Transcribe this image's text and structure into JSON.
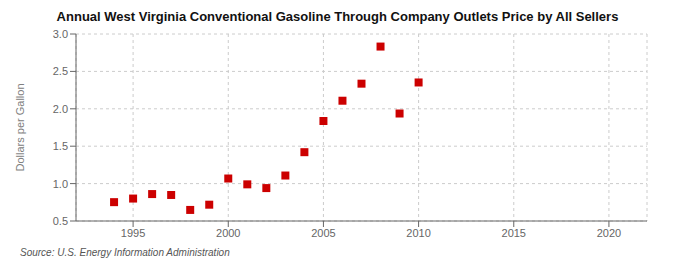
{
  "chart_data": {
    "type": "scatter",
    "title": "Annual West Virginia Conventional Gasoline Through Company Outlets Price by All Sellers",
    "y_label": "Dollars per Gallon",
    "annotations": [
      "Source: U.S. Energy Information Administration"
    ],
    "x": [
      1994,
      1995,
      1996,
      1997,
      1998,
      1999,
      2000,
      2001,
      2002,
      2003,
      2004,
      2005,
      2006,
      2007,
      2008,
      2009,
      2010
    ],
    "values": [
      0.752,
      0.8,
      0.86,
      0.848,
      0.648,
      0.718,
      1.068,
      0.99,
      0.94,
      1.108,
      1.42,
      1.837,
      2.108,
      2.336,
      2.832,
      1.937,
      2.352
    ],
    "color": "#cc0000",
    "marker": "square",
    "xlim": [
      1992,
      2022
    ],
    "ylim": [
      0.5,
      3.0
    ],
    "xticks": [
      1995,
      2000,
      2005,
      2010,
      2015,
      2020
    ],
    "yticks": [
      0.5,
      {
        "value": 1.0,
        "label": "1.0"
      },
      1.5,
      {
        "value": 2.0,
        "label": "2.0"
      },
      2.5,
      {
        "value": 3.0,
        "label": "3.0"
      }
    ],
    "grid": true
  }
}
